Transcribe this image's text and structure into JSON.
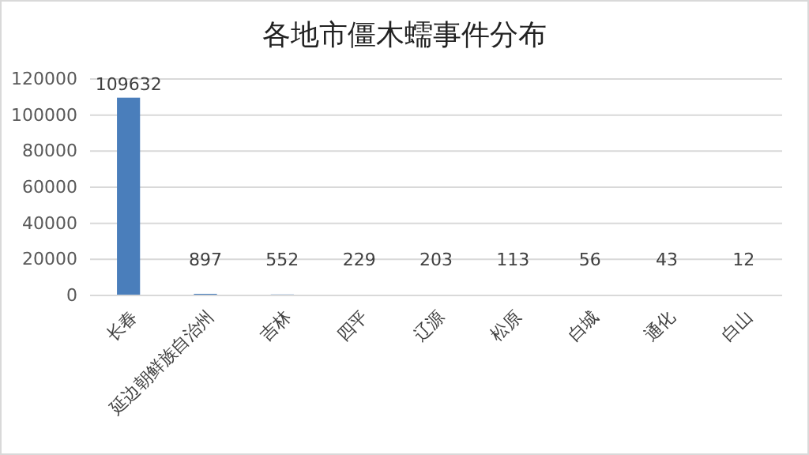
{
  "chart_data": {
    "type": "bar",
    "title": "各地市僵木蠕事件分布",
    "categories": [
      "长春",
      "延边朝鲜族自治州",
      "吉林",
      "四平",
      "辽源",
      "松原",
      "白城",
      "通化",
      "白山"
    ],
    "values": [
      109632,
      897,
      552,
      229,
      203,
      113,
      56,
      43,
      12
    ],
    "color": "#4a7ebb",
    "ylim": [
      0,
      120000
    ],
    "yticks": [
      0,
      20000,
      40000,
      60000,
      80000,
      100000,
      120000
    ],
    "grid": "y",
    "data_labels": true
  }
}
